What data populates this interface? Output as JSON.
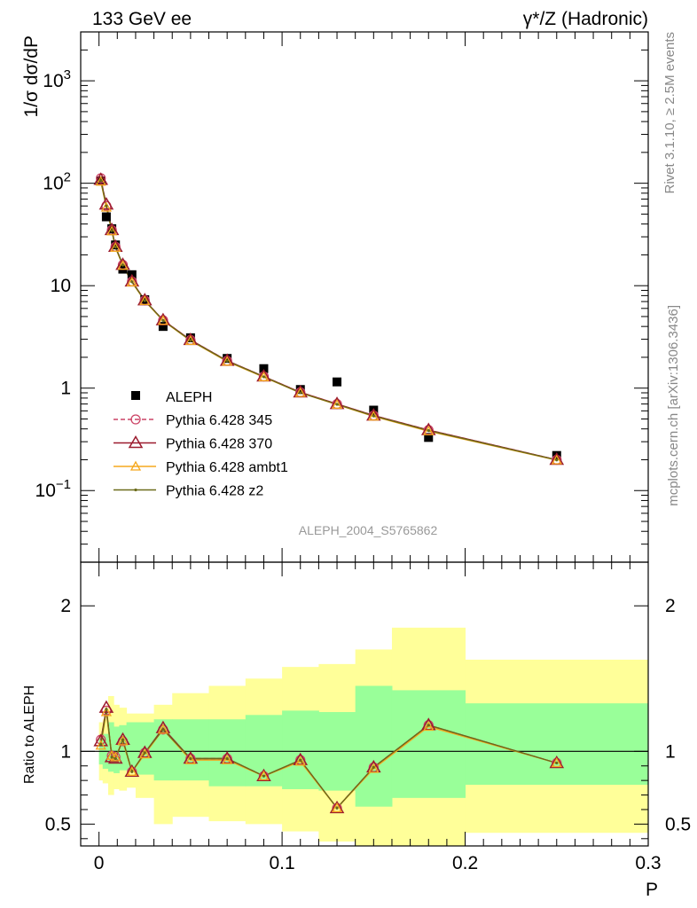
{
  "header": {
    "left": "133 GeV ee",
    "right": "γ*/Z (Hadronic)"
  },
  "side": {
    "rivet": "Rivet 3.1.10, ≥ 2.5M events",
    "mcplots": "mcplots.cern.ch [arXiv:1306.3436]"
  },
  "colors": {
    "band_outer": "#ffff99",
    "band_inner": "#99ff99",
    "data": "#000000",
    "p345": "#cc4466",
    "p370": "#9b1b2e",
    "ambt1": "#f5a81e",
    "z2": "#6b6b1a"
  },
  "chart_data": [
    {
      "type": "scatter",
      "ylabel": "1/σ dσ/dP",
      "yscale": "log",
      "xlim": [
        -0.01,
        0.3
      ],
      "ylim": [
        0.02,
        3000
      ],
      "yticks": [
        {
          "v": 0.1,
          "base": "10",
          "exp": "−1"
        },
        {
          "v": 1,
          "base": "1",
          "exp": ""
        },
        {
          "v": 10,
          "base": "10",
          "exp": ""
        },
        {
          "v": 100,
          "base": "10",
          "exp": "2"
        },
        {
          "v": 1000,
          "base": "10",
          "exp": "3"
        }
      ],
      "watermark": "ALEPH_2004_S5765862",
      "legend_position": "lower-left",
      "data": {
        "name": "ALEPH",
        "x": [
          0.001,
          0.004,
          0.007,
          0.009,
          0.013,
          0.018,
          0.025,
          0.035,
          0.05,
          0.07,
          0.09,
          0.11,
          0.13,
          0.15,
          0.18,
          0.25
        ],
        "y": [
          105,
          47,
          36,
          25,
          14.5,
          12.8,
          7.3,
          4.0,
          3.1,
          1.95,
          1.55,
          0.97,
          1.15,
          0.61,
          0.33,
          0.22
        ]
      },
      "series": [
        {
          "name": "Pythia 6.428 345",
          "key": "p345",
          "marker": "circle",
          "dash": true,
          "x": [
            0.001,
            0.004,
            0.007,
            0.009,
            0.013,
            0.018,
            0.025,
            0.035,
            0.05,
            0.07,
            0.09,
            0.11,
            0.13,
            0.15,
            0.18,
            0.25
          ],
          "y": [
            112,
            60,
            35,
            24,
            16,
            11,
            7.2,
            4.6,
            2.95,
            1.85,
            1.3,
            0.91,
            0.7,
            0.54,
            0.39,
            0.2
          ]
        },
        {
          "name": "Pythia 6.428 370",
          "key": "p370",
          "marker": "triangle",
          "dash": false,
          "x": [
            0.001,
            0.004,
            0.007,
            0.009,
            0.013,
            0.018,
            0.025,
            0.035,
            0.05,
            0.07,
            0.09,
            0.11,
            0.13,
            0.15,
            0.18,
            0.25
          ],
          "y": [
            108,
            62,
            35,
            24,
            16,
            11,
            7.2,
            4.6,
            2.95,
            1.85,
            1.3,
            0.91,
            0.7,
            0.54,
            0.39,
            0.2
          ]
        },
        {
          "name": "Pythia 6.428 ambt1",
          "key": "ambt1",
          "marker": "triangle-small",
          "dash": false,
          "x": [
            0.001,
            0.004,
            0.007,
            0.009,
            0.013,
            0.018,
            0.025,
            0.035,
            0.05,
            0.07,
            0.09,
            0.11,
            0.13,
            0.15,
            0.18,
            0.25
          ],
          "y": [
            104,
            58,
            34,
            23.5,
            15.7,
            10.8,
            7.1,
            4.55,
            2.9,
            1.82,
            1.28,
            0.9,
            0.69,
            0.53,
            0.38,
            0.198
          ]
        },
        {
          "name": "Pythia 6.428 z2",
          "key": "z2",
          "marker": "dot",
          "dash": false,
          "x": [
            0.001,
            0.004,
            0.007,
            0.009,
            0.013,
            0.018,
            0.025,
            0.035,
            0.05,
            0.07,
            0.09,
            0.11,
            0.13,
            0.15,
            0.18,
            0.25
          ],
          "y": [
            106,
            60,
            34.5,
            23.8,
            15.9,
            10.9,
            7.15,
            4.58,
            2.92,
            1.84,
            1.29,
            0.9,
            0.695,
            0.535,
            0.385,
            0.199
          ]
        }
      ]
    },
    {
      "type": "line",
      "xlabel": "P",
      "ylabel": "Ratio to ALEPH",
      "xlim": [
        -0.01,
        0.3
      ],
      "ylim": [
        0.35,
        2.3
      ],
      "xticks": [
        0,
        0.1,
        0.2,
        0.3
      ],
      "xtick_labels": [
        "0",
        "0.1",
        "0.2",
        "0.3"
      ],
      "yticks": [
        0.5,
        1,
        2
      ],
      "ytick_labels": [
        "0.5",
        "1",
        "2"
      ],
      "reference_line": 1,
      "bands": [
        {
          "x0": 0.0,
          "x1": 0.002,
          "inner": [
            0.91,
            1.09
          ],
          "outer": [
            0.8,
            1.2
          ]
        },
        {
          "x0": 0.002,
          "x1": 0.005,
          "inner": [
            0.88,
            1.12
          ],
          "outer": [
            0.78,
            1.22
          ]
        },
        {
          "x0": 0.005,
          "x1": 0.008,
          "inner": [
            0.86,
            1.2
          ],
          "outer": [
            0.7,
            1.38
          ]
        },
        {
          "x0": 0.008,
          "x1": 0.011,
          "inner": [
            0.85,
            1.17
          ],
          "outer": [
            0.74,
            1.32
          ]
        },
        {
          "x0": 0.011,
          "x1": 0.015,
          "inner": [
            0.87,
            1.18
          ],
          "outer": [
            0.73,
            1.3
          ]
        },
        {
          "x0": 0.015,
          "x1": 0.02,
          "inner": [
            0.87,
            1.2
          ],
          "outer": [
            0.75,
            1.26
          ]
        },
        {
          "x0": 0.02,
          "x1": 0.03,
          "inner": [
            0.84,
            1.2
          ],
          "outer": [
            0.68,
            1.26
          ]
        },
        {
          "x0": 0.03,
          "x1": 0.04,
          "inner": [
            0.8,
            1.22
          ],
          "outer": [
            0.5,
            1.32
          ]
        },
        {
          "x0": 0.04,
          "x1": 0.06,
          "inner": [
            0.8,
            1.22
          ],
          "outer": [
            0.55,
            1.4
          ]
        },
        {
          "x0": 0.06,
          "x1": 0.08,
          "inner": [
            0.76,
            1.22
          ],
          "outer": [
            0.52,
            1.45
          ]
        },
        {
          "x0": 0.08,
          "x1": 0.1,
          "inner": [
            0.76,
            1.25
          ],
          "outer": [
            0.5,
            1.5
          ]
        },
        {
          "x0": 0.1,
          "x1": 0.12,
          "inner": [
            0.74,
            1.28
          ],
          "outer": [
            0.45,
            1.58
          ]
        },
        {
          "x0": 0.12,
          "x1": 0.14,
          "inner": [
            0.73,
            1.27
          ],
          "outer": [
            0.38,
            1.6
          ]
        },
        {
          "x0": 0.14,
          "x1": 0.16,
          "inner": [
            0.62,
            1.45
          ],
          "outer": [
            0.35,
            1.7
          ]
        },
        {
          "x0": 0.16,
          "x1": 0.2,
          "inner": [
            0.68,
            1.42
          ],
          "outer": [
            0.35,
            1.85
          ]
        },
        {
          "x0": 0.2,
          "x1": 0.3,
          "inner": [
            0.77,
            1.33
          ],
          "outer": [
            0.44,
            1.63
          ]
        }
      ],
      "series": [
        {
          "key": "p345",
          "marker": "circle",
          "dash": true,
          "x": [
            0.001,
            0.004,
            0.007,
            0.009,
            0.013,
            0.018,
            0.025,
            0.035,
            0.05,
            0.07,
            0.09,
            0.11,
            0.13,
            0.15,
            0.18,
            0.25
          ],
          "y": [
            1.08,
            1.28,
            0.97,
            0.96,
            1.07,
            0.86,
            0.99,
            1.15,
            0.95,
            0.95,
            0.83,
            0.94,
            0.61,
            0.89,
            1.18,
            0.92
          ]
        },
        {
          "key": "p370",
          "marker": "triangle",
          "dash": false,
          "x": [
            0.001,
            0.004,
            0.007,
            0.009,
            0.013,
            0.018,
            0.025,
            0.035,
            0.05,
            0.07,
            0.09,
            0.11,
            0.13,
            0.15,
            0.18,
            0.25
          ],
          "y": [
            1.07,
            1.3,
            0.96,
            0.95,
            1.08,
            0.86,
            0.99,
            1.16,
            0.95,
            0.95,
            0.83,
            0.94,
            0.61,
            0.89,
            1.18,
            0.92
          ]
        },
        {
          "key": "ambt1",
          "marker": "triangle-small",
          "dash": false,
          "x": [
            0.001,
            0.004,
            0.007,
            0.009,
            0.013,
            0.018,
            0.025,
            0.035,
            0.05,
            0.07,
            0.09,
            0.11,
            0.13,
            0.15,
            0.18,
            0.25
          ],
          "y": [
            1.04,
            1.27,
            0.97,
            0.96,
            1.07,
            0.86,
            0.98,
            1.15,
            0.94,
            0.94,
            0.83,
            0.93,
            0.61,
            0.88,
            1.17,
            0.92
          ]
        },
        {
          "key": "z2",
          "marker": "dot",
          "dash": false,
          "x": [
            0.001,
            0.004,
            0.007,
            0.009,
            0.013,
            0.018,
            0.025,
            0.035,
            0.05,
            0.07,
            0.09,
            0.11,
            0.13,
            0.15,
            0.18,
            0.25
          ],
          "y": [
            1.05,
            1.29,
            0.96,
            0.95,
            1.08,
            0.86,
            0.99,
            1.15,
            0.95,
            0.95,
            0.83,
            0.94,
            0.61,
            0.89,
            1.18,
            0.92
          ]
        }
      ]
    }
  ]
}
